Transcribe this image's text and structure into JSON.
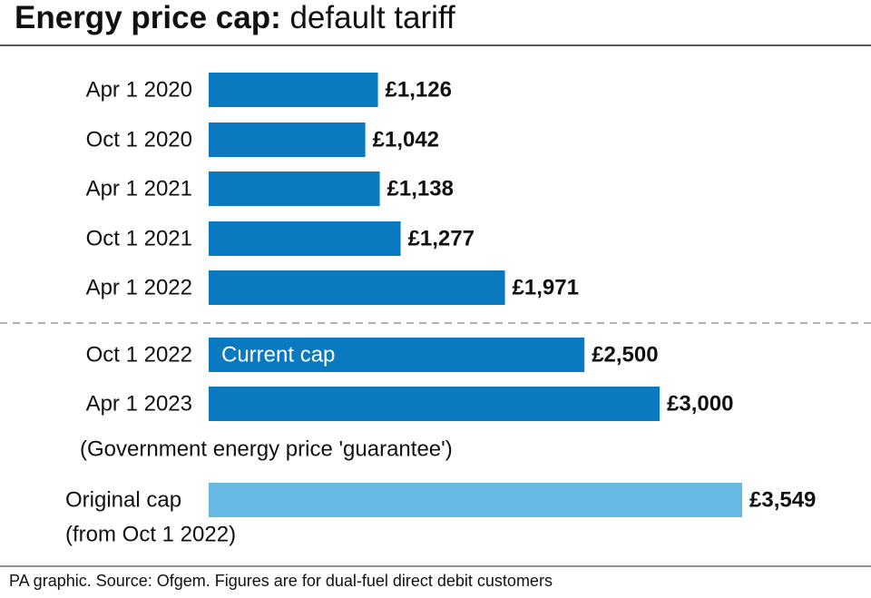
{
  "chart_data": {
    "type": "bar",
    "title": "Energy price cap:",
    "title_detail": "default tariff",
    "categories": [
      "Apr 1 2020",
      "Oct 1 2020",
      "Apr 1 2021",
      "Oct 1 2021",
      "Apr 1 2022",
      "Oct 1 2022",
      "Apr 1 2023",
      "Original cap"
    ],
    "values": [
      1126,
      1042,
      1138,
      1277,
      1971,
      2500,
      3000,
      3549
    ],
    "value_labels": [
      "£1,126",
      "£1,042",
      "£1,138",
      "£1,277",
      "£1,971",
      "£2,500",
      "£3,000",
      "£3,549"
    ],
    "colors": [
      "#0b79bf",
      "#0b79bf",
      "#0b79bf",
      "#0b79bf",
      "#0b79bf",
      "#0b79bf",
      "#0b79bf",
      "#66b9e2"
    ],
    "annotations": {
      "current_cap": "Current cap",
      "guarantee": "(Government energy price 'guarantee')",
      "original_from": "(from Oct 1 2022)"
    },
    "source": "PA graphic. Source: Ofgem. Figures are for dual-fuel direct debit customers"
  }
}
